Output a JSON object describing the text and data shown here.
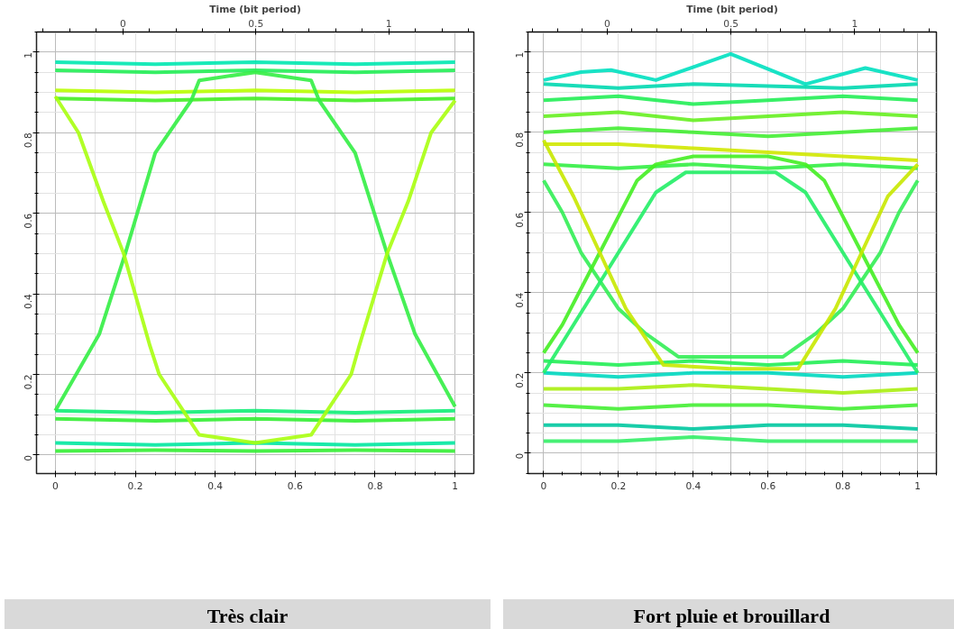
{
  "chart_data": [
    {
      "type": "line",
      "x2label": "Time (bit period)",
      "xlim": [
        -0.047,
        1.047
      ],
      "ylim": [
        -0.046,
        1.05
      ],
      "xticks": [
        0,
        0.2,
        0.4,
        0.6,
        0.8,
        1
      ],
      "yticks": [
        0,
        0.2,
        0.4,
        0.6,
        0.8,
        1
      ],
      "x2lim": [
        -0.325,
        1.32
      ],
      "x2ticks": [
        0,
        0.5,
        1
      ],
      "grid": true,
      "line_style": "solid",
      "annotations": [
        "Très clair"
      ],
      "series": [
        {
          "color": "#00e8b0",
          "x": [
            0,
            0.25,
            0.5,
            0.75,
            1
          ],
          "values": [
            0.975,
            0.97,
            0.975,
            0.97,
            0.975
          ]
        },
        {
          "color": "#22ee55",
          "x": [
            0,
            0.25,
            0.5,
            0.75,
            1
          ],
          "values": [
            0.955,
            0.95,
            0.955,
            0.95,
            0.955
          ]
        },
        {
          "color": "#b8ff00",
          "x": [
            0,
            0.25,
            0.5,
            0.75,
            1
          ],
          "values": [
            0.905,
            0.9,
            0.905,
            0.9,
            0.905
          ]
        },
        {
          "color": "#44ee22",
          "x": [
            0,
            0.25,
            0.5,
            0.75,
            1
          ],
          "values": [
            0.885,
            0.88,
            0.885,
            0.88,
            0.885
          ]
        },
        {
          "color": "#11ee77",
          "x": [
            0,
            0.25,
            0.5,
            0.75,
            1
          ],
          "values": [
            0.11,
            0.105,
            0.11,
            0.105,
            0.11
          ]
        },
        {
          "color": "#33ee33",
          "x": [
            0,
            0.25,
            0.5,
            0.75,
            1
          ],
          "values": [
            0.09,
            0.085,
            0.09,
            0.085,
            0.09
          ]
        },
        {
          "color": "#00e8a0",
          "x": [
            0,
            0.25,
            0.5,
            0.75,
            1
          ],
          "values": [
            0.03,
            0.025,
            0.03,
            0.025,
            0.03
          ]
        },
        {
          "color": "#33ee33",
          "x": [
            0,
            0.25,
            0.5,
            0.75,
            1
          ],
          "values": [
            0.01,
            0.012,
            0.01,
            0.012,
            0.01
          ]
        },
        {
          "color": "#33ee44",
          "x": [
            0,
            0.11,
            0.175,
            0.25,
            0.34,
            0.36,
            0.5,
            0.64,
            0.66,
            0.75,
            0.83,
            0.9,
            1
          ],
          "values": [
            0.11,
            0.3,
            0.5,
            0.75,
            0.88,
            0.93,
            0.95,
            0.93,
            0.88,
            0.75,
            0.5,
            0.3,
            0.12
          ]
        },
        {
          "color": "#a8ff10",
          "x": [
            0,
            0.058,
            0.12,
            0.171,
            0.237,
            0.26,
            0.36,
            0.5,
            0.64,
            0.74,
            0.76,
            0.83,
            0.883,
            0.94,
            1
          ],
          "values": [
            0.89,
            0.8,
            0.63,
            0.5,
            0.27,
            0.2,
            0.05,
            0.03,
            0.05,
            0.2,
            0.27,
            0.5,
            0.63,
            0.8,
            0.88
          ]
        }
      ]
    },
    {
      "type": "line",
      "x2label": "Time (bit period)",
      "xlim": [
        -0.042,
        1.05
      ],
      "ylim": [
        -0.051,
        1.05
      ],
      "xticks": [
        0,
        0.2,
        0.4,
        0.6,
        0.8,
        1
      ],
      "yticks": [
        0,
        0.2,
        0.4,
        0.6,
        0.8,
        1
      ],
      "x2lim": [
        -0.32,
        1.33
      ],
      "x2ticks": [
        0,
        0.5,
        1
      ],
      "grid": true,
      "line_style": "solid",
      "annotations": [
        "Fort pluie et brouillard"
      ],
      "series": [
        {
          "color": "#00e0c0",
          "x": [
            0,
            0.1,
            0.18,
            0.3,
            0.5,
            0.7,
            0.86,
            1
          ],
          "values": [
            0.93,
            0.95,
            0.955,
            0.93,
            0.995,
            0.92,
            0.96,
            0.93
          ]
        },
        {
          "color": "#00d8b0",
          "x": [
            0,
            0.2,
            0.4,
            0.6,
            0.8,
            1
          ],
          "values": [
            0.92,
            0.91,
            0.92,
            0.915,
            0.91,
            0.92
          ]
        },
        {
          "color": "#22ee55",
          "x": [
            0,
            0.2,
            0.4,
            0.6,
            0.8,
            1
          ],
          "values": [
            0.88,
            0.89,
            0.87,
            0.88,
            0.89,
            0.88
          ]
        },
        {
          "color": "#66f020",
          "x": [
            0,
            0.2,
            0.4,
            0.6,
            0.8,
            1
          ],
          "values": [
            0.84,
            0.85,
            0.83,
            0.84,
            0.85,
            0.84
          ]
        },
        {
          "color": "#44ee33",
          "x": [
            0,
            0.2,
            0.4,
            0.6,
            0.8,
            1
          ],
          "values": [
            0.8,
            0.81,
            0.8,
            0.79,
            0.8,
            0.81
          ]
        },
        {
          "color": "#d0e800",
          "x": [
            0,
            0.2,
            0.4,
            0.6,
            0.8,
            1
          ],
          "values": [
            0.77,
            0.77,
            0.76,
            0.75,
            0.74,
            0.73
          ]
        },
        {
          "color": "#33ee44",
          "x": [
            0,
            0.2,
            0.4,
            0.6,
            0.8,
            1
          ],
          "values": [
            0.72,
            0.71,
            0.72,
            0.71,
            0.72,
            0.71
          ]
        },
        {
          "color": "#22ee55",
          "x": [
            0,
            0.2,
            0.4,
            0.6,
            0.8,
            1
          ],
          "values": [
            0.23,
            0.22,
            0.23,
            0.22,
            0.23,
            0.22
          ]
        },
        {
          "color": "#00d8c0",
          "x": [
            0,
            0.2,
            0.4,
            0.6,
            0.8,
            1
          ],
          "values": [
            0.2,
            0.19,
            0.2,
            0.2,
            0.19,
            0.2
          ]
        },
        {
          "color": "#aaee10",
          "x": [
            0,
            0.2,
            0.4,
            0.6,
            0.8,
            1
          ],
          "values": [
            0.16,
            0.16,
            0.17,
            0.16,
            0.15,
            0.16
          ]
        },
        {
          "color": "#44ee33",
          "x": [
            0,
            0.2,
            0.4,
            0.6,
            0.8,
            1
          ],
          "values": [
            0.12,
            0.11,
            0.12,
            0.12,
            0.11,
            0.12
          ]
        },
        {
          "color": "#00c8a0",
          "x": [
            0,
            0.2,
            0.4,
            0.6,
            0.8,
            1
          ],
          "values": [
            0.07,
            0.07,
            0.06,
            0.07,
            0.07,
            0.06
          ]
        },
        {
          "color": "#33ee66",
          "x": [
            0,
            0.2,
            0.4,
            0.6,
            0.8,
            1
          ],
          "values": [
            0.03,
            0.03,
            0.04,
            0.03,
            0.03,
            0.03
          ]
        },
        {
          "color": "#33ee55",
          "x": [
            0,
            0.05,
            0.1,
            0.2,
            0.27,
            0.36,
            0.5,
            0.64,
            0.73,
            0.8,
            0.9,
            0.95,
            1
          ],
          "values": [
            0.68,
            0.6,
            0.5,
            0.36,
            0.3,
            0.24,
            0.24,
            0.24,
            0.3,
            0.36,
            0.5,
            0.6,
            0.68
          ]
        },
        {
          "color": "#44ee22",
          "x": [
            0,
            0.05,
            0.15,
            0.25,
            0.3,
            0.4,
            0.5,
            0.6,
            0.7,
            0.75,
            0.85,
            0.95,
            1
          ],
          "values": [
            0.25,
            0.32,
            0.5,
            0.68,
            0.72,
            0.74,
            0.74,
            0.74,
            0.72,
            0.68,
            0.5,
            0.32,
            0.25
          ]
        },
        {
          "color": "#22ee66",
          "x": [
            0,
            0.1,
            0.2,
            0.3,
            0.38,
            0.5,
            0.62,
            0.7,
            0.8,
            0.9,
            1
          ],
          "values": [
            0.2,
            0.35,
            0.5,
            0.65,
            0.7,
            0.7,
            0.7,
            0.65,
            0.5,
            0.35,
            0.2
          ]
        },
        {
          "color": "#c8e800",
          "x": [
            0,
            0.08,
            0.15,
            0.22,
            0.32,
            0.5,
            0.68,
            0.78,
            0.85,
            0.92,
            1
          ],
          "values": [
            0.78,
            0.64,
            0.5,
            0.36,
            0.22,
            0.21,
            0.21,
            0.36,
            0.5,
            0.64,
            0.72
          ]
        }
      ]
    }
  ]
}
